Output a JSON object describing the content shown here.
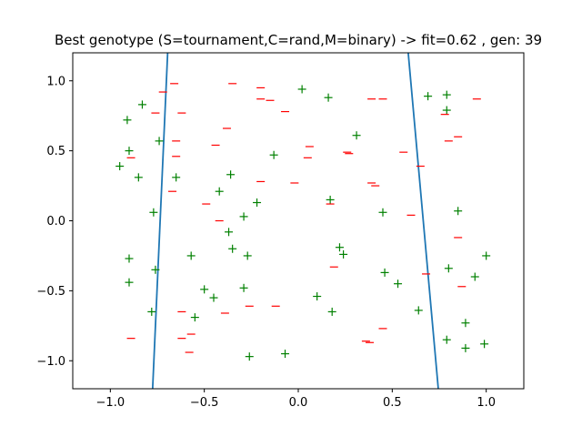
{
  "chart_data": {
    "type": "scatter",
    "title": "Best genotype (S=tournament,C=rand,M=binary) -> fit=0.62 , gen: 39",
    "xlabel": "",
    "ylabel": "",
    "xlim": [
      -1.2,
      1.2
    ],
    "ylim": [
      -1.2,
      1.2
    ],
    "xticks": [
      -1.0,
      -0.5,
      0.0,
      0.5,
      1.0
    ],
    "xtick_labels": [
      "−1.0",
      "−0.5",
      "0.0",
      "0.5",
      "1.0"
    ],
    "yticks": [
      -1.0,
      -0.5,
      0.0,
      0.5,
      1.0
    ],
    "ytick_labels": [
      "−1.0",
      "−0.5",
      "0.0",
      "0.5",
      "1.0"
    ],
    "grid": false,
    "series": [
      {
        "marker": "+",
        "color": "#008000",
        "points": [
          [
            -0.91,
            0.72
          ],
          [
            -0.83,
            0.83
          ],
          [
            -0.9,
            0.5
          ],
          [
            -0.74,
            0.57
          ],
          [
            -0.95,
            0.39
          ],
          [
            -0.85,
            0.31
          ],
          [
            -0.65,
            0.31
          ],
          [
            -0.77,
            0.06
          ],
          [
            -0.9,
            -0.27
          ],
          [
            -0.9,
            -0.44
          ],
          [
            -0.76,
            -0.35
          ],
          [
            -0.78,
            -0.65
          ],
          [
            -0.57,
            -0.25
          ],
          [
            -0.5,
            -0.49
          ],
          [
            -0.55,
            -0.69
          ],
          [
            -0.45,
            -0.55
          ],
          [
            -0.36,
            0.33
          ],
          [
            -0.42,
            0.21
          ],
          [
            -0.37,
            -0.08
          ],
          [
            -0.29,
            0.03
          ],
          [
            -0.22,
            0.13
          ],
          [
            -0.35,
            -0.2
          ],
          [
            -0.27,
            -0.25
          ],
          [
            -0.29,
            -0.48
          ],
          [
            -0.26,
            -0.97
          ],
          [
            -0.07,
            -0.95
          ],
          [
            -0.13,
            0.47
          ],
          [
            0.02,
            0.94
          ],
          [
            0.16,
            0.88
          ],
          [
            0.31,
            0.61
          ],
          [
            0.17,
            0.15
          ],
          [
            0.22,
            -0.19
          ],
          [
            0.24,
            -0.24
          ],
          [
            0.1,
            -0.54
          ],
          [
            0.18,
            -0.65
          ],
          [
            0.45,
            0.06
          ],
          [
            0.46,
            -0.37
          ],
          [
            0.53,
            -0.45
          ],
          [
            0.64,
            -0.64
          ],
          [
            0.69,
            0.89
          ],
          [
            0.79,
            0.9
          ],
          [
            0.79,
            0.79
          ],
          [
            0.85,
            0.07
          ],
          [
            0.8,
            -0.34
          ],
          [
            0.79,
            -0.85
          ],
          [
            0.89,
            -0.73
          ],
          [
            0.89,
            -0.91
          ],
          [
            0.94,
            -0.4
          ],
          [
            1.0,
            -0.25
          ],
          [
            0.99,
            -0.88
          ]
        ]
      },
      {
        "marker": "_",
        "color": "#ff0000",
        "points": [
          [
            -0.72,
            0.92
          ],
          [
            -0.66,
            0.98
          ],
          [
            -0.76,
            0.77
          ],
          [
            -0.62,
            0.77
          ],
          [
            -0.65,
            0.57
          ],
          [
            -0.65,
            0.46
          ],
          [
            -0.67,
            0.21
          ],
          [
            -0.89,
            0.45
          ],
          [
            -0.35,
            0.98
          ],
          [
            -0.2,
            0.95
          ],
          [
            -0.2,
            0.87
          ],
          [
            -0.15,
            0.86
          ],
          [
            -0.07,
            0.78
          ],
          [
            -0.38,
            0.66
          ],
          [
            -0.44,
            0.54
          ],
          [
            -0.49,
            0.12
          ],
          [
            -0.42,
            0.0
          ],
          [
            -0.2,
            0.28
          ],
          [
            -0.02,
            0.27
          ],
          [
            0.06,
            0.53
          ],
          [
            0.05,
            0.45
          ],
          [
            0.26,
            0.49
          ],
          [
            0.27,
            0.48
          ],
          [
            0.17,
            0.12
          ],
          [
            0.19,
            -0.33
          ],
          [
            -0.62,
            -0.65
          ],
          [
            -0.57,
            -0.81
          ],
          [
            -0.62,
            -0.84
          ],
          [
            -0.58,
            -0.94
          ],
          [
            -0.39,
            -0.66
          ],
          [
            -0.26,
            -0.61
          ],
          [
            -0.12,
            -0.61
          ],
          [
            -0.89,
            -0.84
          ],
          [
            0.36,
            -0.86
          ],
          [
            0.38,
            -0.87
          ],
          [
            0.45,
            -0.77
          ],
          [
            0.39,
            0.87
          ],
          [
            0.45,
            0.87
          ],
          [
            0.39,
            0.27
          ],
          [
            0.41,
            0.25
          ],
          [
            0.56,
            0.49
          ],
          [
            0.6,
            0.04
          ],
          [
            0.65,
            0.39
          ],
          [
            0.68,
            -0.38
          ],
          [
            0.78,
            0.76
          ],
          [
            0.8,
            0.57
          ],
          [
            0.85,
            0.6
          ],
          [
            0.95,
            0.87
          ],
          [
            0.85,
            -0.12
          ],
          [
            0.87,
            -0.47
          ]
        ]
      }
    ],
    "lines": [
      {
        "color": "#1f77b4",
        "points": [
          [
            -0.695,
            1.2
          ],
          [
            -0.775,
            -1.2
          ]
        ]
      },
      {
        "color": "#1f77b4",
        "points": [
          [
            0.585,
            1.2
          ],
          [
            0.745,
            -1.2
          ]
        ]
      }
    ]
  }
}
